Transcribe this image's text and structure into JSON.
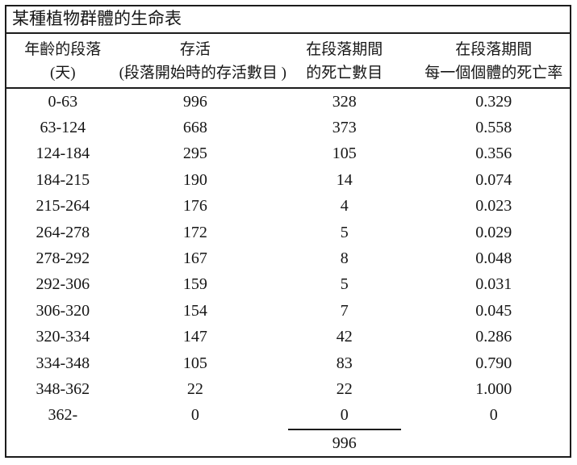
{
  "table": {
    "title": "某種植物群體的生命表",
    "headers": [
      {
        "line1": "年齡的段落",
        "line2": "(天)"
      },
      {
        "line1": "存活",
        "line2": "(段落開始時的存活數目 )"
      },
      {
        "line1": "在段落期間",
        "line2": "的死亡數目"
      },
      {
        "line1": "在段落期間",
        "line2": "每一個個體的死亡率"
      }
    ],
    "rows": [
      {
        "age": "0-63",
        "alive": "996",
        "deaths": "328",
        "rate": "0.329"
      },
      {
        "age": "63-124",
        "alive": "668",
        "deaths": "373",
        "rate": "0.558"
      },
      {
        "age": "124-184",
        "alive": "295",
        "deaths": "105",
        "rate": "0.356"
      },
      {
        "age": "184-215",
        "alive": "190",
        "deaths": "14",
        "rate": "0.074"
      },
      {
        "age": "215-264",
        "alive": "176",
        "deaths": "4",
        "rate": "0.023"
      },
      {
        "age": "264-278",
        "alive": "172",
        "deaths": "5",
        "rate": "0.029"
      },
      {
        "age": "278-292",
        "alive": "167",
        "deaths": "8",
        "rate": "0.048"
      },
      {
        "age": "292-306",
        "alive": "159",
        "deaths": "5",
        "rate": "0.031"
      },
      {
        "age": "306-320",
        "alive": "154",
        "deaths": "7",
        "rate": "0.045"
      },
      {
        "age": "320-334",
        "alive": "147",
        "deaths": "42",
        "rate": "0.286"
      },
      {
        "age": "334-348",
        "alive": "105",
        "deaths": "83",
        "rate": "0.790"
      },
      {
        "age": "348-362",
        "alive": "22",
        "deaths": "22",
        "rate": "1.000"
      },
      {
        "age": "362-",
        "alive": "0",
        "deaths": "0",
        "rate": "0"
      }
    ],
    "total_deaths": "996"
  },
  "chart_data": {
    "type": "table",
    "title": "某種植物群體的生命表",
    "columns": [
      "年齡的段落 (天)",
      "存活 (段落開始時的存活數目)",
      "在段落期間的死亡數目",
      "在段落期間每一個個體的死亡率"
    ],
    "rows": [
      [
        "0-63",
        996,
        328,
        0.329
      ],
      [
        "63-124",
        668,
        373,
        0.558
      ],
      [
        "124-184",
        295,
        105,
        0.356
      ],
      [
        "184-215",
        190,
        14,
        0.074
      ],
      [
        "215-264",
        176,
        4,
        0.023
      ],
      [
        "264-278",
        172,
        5,
        0.029
      ],
      [
        "278-292",
        167,
        8,
        0.048
      ],
      [
        "292-306",
        159,
        5,
        0.031
      ],
      [
        "306-320",
        154,
        7,
        0.045
      ],
      [
        "320-334",
        147,
        42,
        0.286
      ],
      [
        "334-348",
        105,
        83,
        0.79
      ],
      [
        "348-362",
        22,
        22,
        1.0
      ],
      [
        "362-",
        0,
        0,
        0
      ]
    ],
    "deaths_column_total": 996
  }
}
